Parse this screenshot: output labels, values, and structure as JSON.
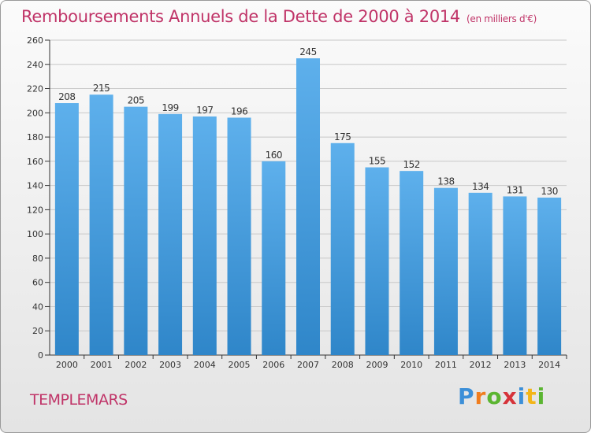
{
  "title": "Remboursements Annuels de la Dette de 2000 à 2014",
  "unit": "(en milliers d'€)",
  "commune": "TEMPLEMARS",
  "logo": {
    "letters": [
      "P",
      "r",
      "o",
      "x",
      "i",
      "t",
      "i"
    ],
    "colors": [
      "#3c8fd8",
      "#f07d1e",
      "#5bb531",
      "#d6333a",
      "#3c8fd8",
      "#f3b518",
      "#5bb531"
    ]
  },
  "colors": {
    "bar_top": "#5eb0ec",
    "bar_bottom": "#2f86c9",
    "title": "#c03468"
  },
  "chart_data": {
    "type": "bar",
    "categories": [
      "2000",
      "2001",
      "2002",
      "2003",
      "2004",
      "2005",
      "2006",
      "2007",
      "2008",
      "2009",
      "2010",
      "2011",
      "2012",
      "2013",
      "2014"
    ],
    "values": [
      208,
      215,
      205,
      199,
      197,
      196,
      160,
      245,
      175,
      155,
      152,
      138,
      134,
      131,
      130
    ],
    "title": "Remboursements Annuels de la Dette de 2000 à 2014",
    "ylabel": "",
    "xlabel": "",
    "ylim": [
      0,
      260
    ],
    "yticks": [
      0,
      20,
      40,
      60,
      80,
      100,
      120,
      140,
      160,
      180,
      200,
      220,
      240,
      260
    ],
    "grid": true
  }
}
